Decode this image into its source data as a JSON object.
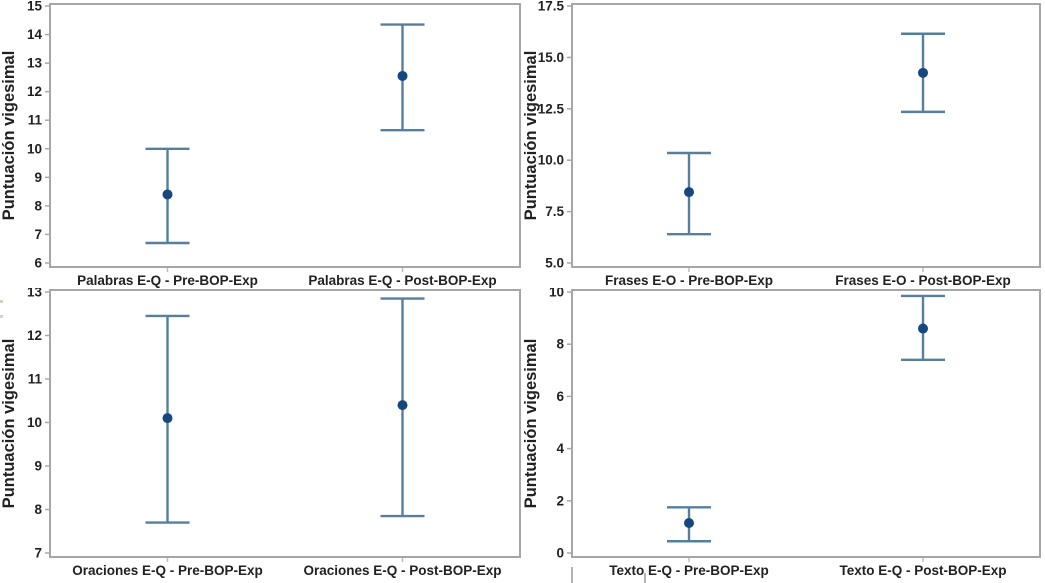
{
  "figure": {
    "ylabel": "Puntuación vigesimal",
    "colors": {
      "interval_line": "#567f9d",
      "mean_marker": "#17477f",
      "panel_border": "#a6a6a6",
      "tick": "#a8a8a8",
      "category_tick": "#bdbdbd",
      "text": "#212121"
    }
  },
  "chart_data": [
    {
      "id": "palabras",
      "type": "scatter",
      "subtype": "interval-plot",
      "position": "top-left",
      "ylabel": "Puntuación vigesimal",
      "ylim": [
        6,
        15
      ],
      "yticks": [
        6,
        7,
        8,
        9,
        10,
        11,
        12,
        13,
        14,
        15
      ],
      "ytick_labels": [
        "6",
        "7",
        "8",
        "9",
        "10",
        "11",
        "12",
        "13",
        "14",
        "15"
      ],
      "grid": false,
      "legend": false,
      "categories": [
        "Palabras E-Q - Pre-BOP-Exp",
        "Palabras E-Q - Post-BOP-Exp"
      ],
      "means": [
        8.4,
        12.55
      ],
      "ci_low": [
        6.7,
        10.65
      ],
      "ci_high": [
        10.0,
        14.35
      ]
    },
    {
      "id": "frases",
      "type": "scatter",
      "subtype": "interval-plot",
      "position": "top-right",
      "ylabel": "Puntuación vigesimal",
      "ylim": [
        5.0,
        17.5
      ],
      "yticks": [
        5.0,
        7.5,
        10.0,
        12.5,
        15.0,
        17.5
      ],
      "ytick_labels": [
        "5.0",
        "7.5",
        "10.0",
        "12.5",
        "15.0",
        "17.5"
      ],
      "grid": false,
      "legend": false,
      "categories": [
        "Frases E-O - Pre-BOP-Exp",
        "Frases E-O - Post-BOP-Exp"
      ],
      "means": [
        8.45,
        14.25
      ],
      "ci_low": [
        6.4,
        12.35
      ],
      "ci_high": [
        10.35,
        16.15
      ]
    },
    {
      "id": "oraciones",
      "type": "scatter",
      "subtype": "interval-plot",
      "position": "bottom-left",
      "ylabel": "Puntuación vigesimal",
      "ylim": [
        7,
        13
      ],
      "yticks": [
        7,
        8,
        9,
        10,
        11,
        12,
        13
      ],
      "ytick_labels": [
        "7",
        "8",
        "9",
        "10",
        "11",
        "12",
        "13"
      ],
      "grid": false,
      "legend": false,
      "categories": [
        "Oraciones E-Q - Pre-BOP-Exp",
        "Oraciones E-Q - Post-BOP-Exp"
      ],
      "means": [
        10.1,
        10.4
      ],
      "ci_low": [
        7.7,
        7.85
      ],
      "ci_high": [
        12.45,
        12.85
      ]
    },
    {
      "id": "texto",
      "type": "scatter",
      "subtype": "interval-plot",
      "position": "bottom-right",
      "ylabel": "Puntuación vigesimal",
      "ylim": [
        0,
        10
      ],
      "yticks": [
        0,
        2,
        4,
        6,
        8,
        10
      ],
      "ytick_labels": [
        "0",
        "2",
        "4",
        "6",
        "8",
        "10"
      ],
      "grid": false,
      "legend": false,
      "categories": [
        "Texto E-Q - Pre-BOP-Exp",
        "Texto E-Q - Post-BOP-Exp"
      ],
      "means": [
        1.15,
        8.6
      ],
      "ci_low": [
        0.45,
        7.4
      ],
      "ci_high": [
        1.75,
        9.85
      ]
    }
  ]
}
